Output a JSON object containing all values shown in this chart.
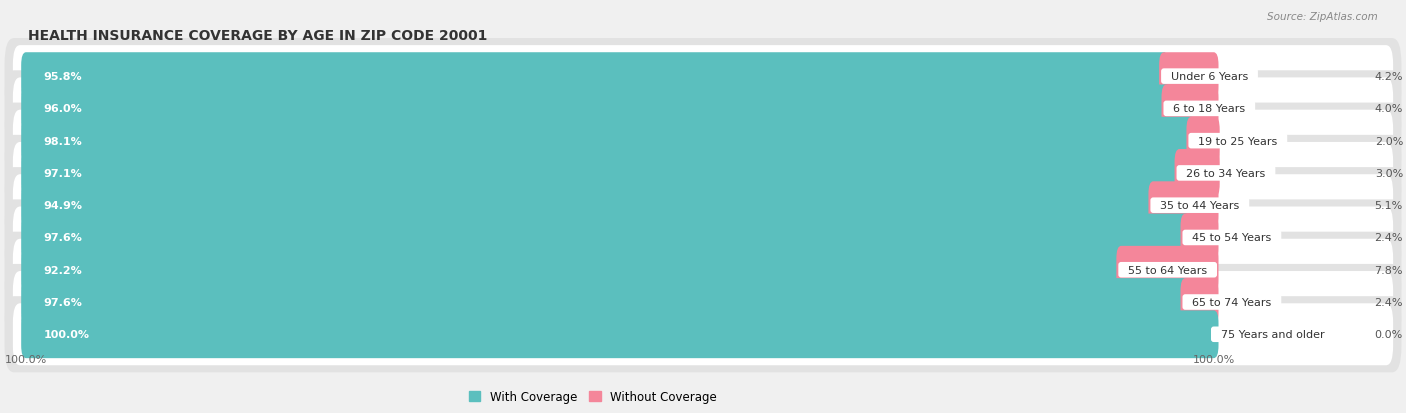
{
  "title": "HEALTH INSURANCE COVERAGE BY AGE IN ZIP CODE 20001",
  "source": "Source: ZipAtlas.com",
  "categories": [
    "Under 6 Years",
    "6 to 18 Years",
    "19 to 25 Years",
    "26 to 34 Years",
    "35 to 44 Years",
    "45 to 54 Years",
    "55 to 64 Years",
    "65 to 74 Years",
    "75 Years and older"
  ],
  "with_coverage": [
    95.8,
    96.0,
    98.1,
    97.1,
    94.9,
    97.6,
    92.2,
    97.6,
    100.0
  ],
  "without_coverage": [
    4.2,
    4.0,
    2.0,
    3.0,
    5.1,
    2.4,
    7.8,
    2.4,
    0.0
  ],
  "with_coverage_labels": [
    "95.8%",
    "96.0%",
    "98.1%",
    "97.1%",
    "94.9%",
    "97.6%",
    "92.2%",
    "97.6%",
    "100.0%"
  ],
  "without_coverage_labels": [
    "4.2%",
    "4.0%",
    "2.0%",
    "3.0%",
    "5.1%",
    "2.4%",
    "7.8%",
    "2.4%",
    "0.0%"
  ],
  "color_with": "#5BBFBE",
  "color_with_light": "#A8DCDC",
  "color_without": "#F4869A",
  "color_without_light": "#FADDE3",
  "bar_height": 0.68,
  "background_color": "#f0f0f0",
  "row_bg_color": "#e2e2e2",
  "title_fontsize": 10,
  "label_fontsize": 8,
  "tick_fontsize": 8,
  "legend_fontsize": 8.5,
  "source_fontsize": 7.5
}
